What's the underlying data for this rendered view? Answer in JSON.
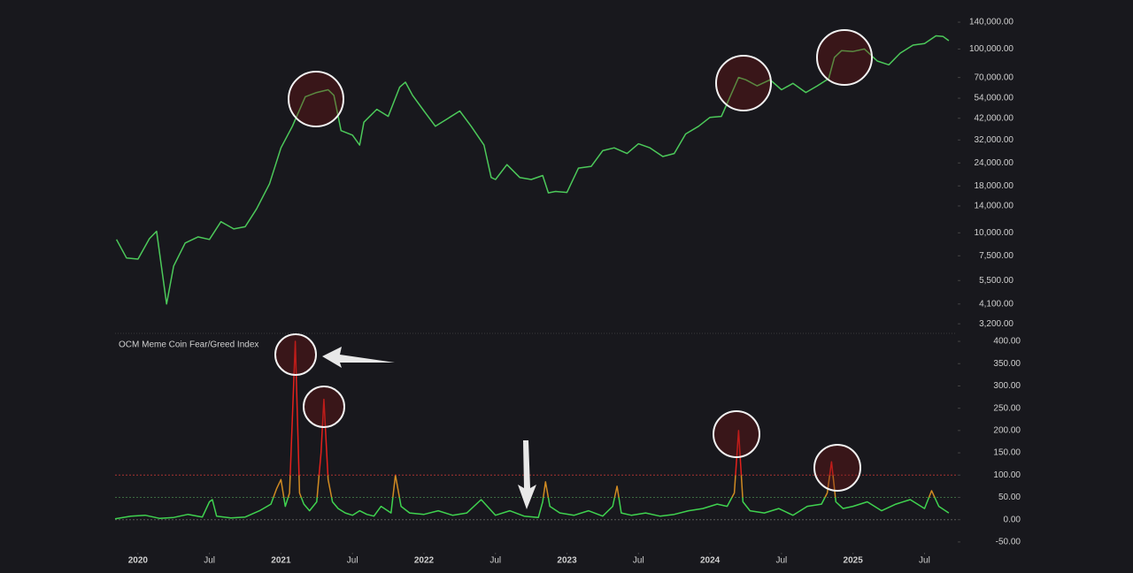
{
  "chart_data": [
    {
      "type": "line",
      "log_scale": true,
      "color": "#4cc95a",
      "x": [
        2019.85,
        2019.92,
        2020.0,
        2020.08,
        2020.13,
        2020.2,
        2020.25,
        2020.33,
        2020.42,
        2020.5,
        2020.58,
        2020.67,
        2020.75,
        2020.83,
        2020.92,
        2021.0,
        2021.08,
        2021.17,
        2021.25,
        2021.33,
        2021.37,
        2021.42,
        2021.5,
        2021.55,
        2021.58,
        2021.67,
        2021.75,
        2021.83,
        2021.87,
        2021.92,
        2022.0,
        2022.08,
        2022.17,
        2022.25,
        2022.33,
        2022.42,
        2022.47,
        2022.5,
        2022.58,
        2022.67,
        2022.75,
        2022.83,
        2022.87,
        2022.92,
        2023.0,
        2023.08,
        2023.17,
        2023.25,
        2023.33,
        2023.42,
        2023.5,
        2023.58,
        2023.67,
        2023.75,
        2023.83,
        2023.92,
        2024.0,
        2024.08,
        2024.17,
        2024.2,
        2024.25,
        2024.33,
        2024.42,
        2024.5,
        2024.58,
        2024.67,
        2024.75,
        2024.83,
        2024.87,
        2024.92,
        2025.0,
        2025.08,
        2025.17,
        2025.25,
        2025.33,
        2025.42,
        2025.5,
        2025.58,
        2025.63,
        2025.67
      ],
      "values": [
        9200,
        7300,
        7200,
        9300,
        10200,
        4100,
        6600,
        8800,
        9500,
        9200,
        11500,
        10500,
        10800,
        13500,
        18500,
        29000,
        38000,
        55000,
        58000,
        60000,
        56000,
        36000,
        34000,
        30000,
        40000,
        47000,
        43000,
        62000,
        66000,
        56000,
        46000,
        38000,
        42000,
        46000,
        38000,
        30000,
        20000,
        19500,
        23500,
        20000,
        19500,
        20500,
        16500,
        16800,
        16600,
        22500,
        23000,
        28000,
        29000,
        27000,
        30500,
        29000,
        26000,
        27000,
        34500,
        38000,
        42500,
        43000,
        62000,
        70000,
        68000,
        63000,
        68000,
        60000,
        65000,
        58000,
        63000,
        69000,
        90000,
        98000,
        97000,
        100000,
        86000,
        82000,
        95000,
        105000,
        107000,
        118000,
        117000,
        111000
      ],
      "xlim": [
        2019.84,
        2025.72
      ],
      "ylim": [
        3000,
        160000
      ],
      "yticks": [
        {
          "value": 140000,
          "label": "140,000.00"
        },
        {
          "value": 100000,
          "label": "100,000.00"
        },
        {
          "value": 70000,
          "label": "70,000.00"
        },
        {
          "value": 54000,
          "label": "54,000.00"
        },
        {
          "value": 42000,
          "label": "42,000.00"
        },
        {
          "value": 32000,
          "label": "32,000.00"
        },
        {
          "value": 24000,
          "label": "24,000.00"
        },
        {
          "value": 18000,
          "label": "18,000.00"
        },
        {
          "value": 14000,
          "label": "14,000.00"
        },
        {
          "value": 10000,
          "label": "10,000.00"
        },
        {
          "value": 7500,
          "label": "7,500.00"
        },
        {
          "value": 5500,
          "label": "5,500.00"
        },
        {
          "value": 4100,
          "label": "4,100.00"
        },
        {
          "value": 3200,
          "label": "3,200.00"
        }
      ]
    },
    {
      "type": "line",
      "title": "OCM Meme Coin Fear/Greed Index",
      "color": "#3fd24f",
      "threshold_colors": [
        {
          "above": 50,
          "color": "#d08a22"
        },
        {
          "above": 100,
          "color": "#e3211c"
        }
      ],
      "hlines": [
        {
          "value": 100,
          "color": "#a83232"
        },
        {
          "value": 50,
          "color": "#3c6a40"
        },
        {
          "value": 0,
          "color": "#5a5a5a"
        }
      ],
      "x": [
        2019.84,
        2019.95,
        2020.05,
        2020.15,
        2020.25,
        2020.35,
        2020.45,
        2020.5,
        2020.52,
        2020.55,
        2020.65,
        2020.75,
        2020.85,
        2020.93,
        2020.97,
        2021.0,
        2021.03,
        2021.06,
        2021.1,
        2021.13,
        2021.16,
        2021.2,
        2021.25,
        2021.28,
        2021.3,
        2021.33,
        2021.36,
        2021.4,
        2021.45,
        2021.5,
        2021.55,
        2021.6,
        2021.65,
        2021.7,
        2021.77,
        2021.8,
        2021.84,
        2021.9,
        2022.0,
        2022.1,
        2022.2,
        2022.3,
        2022.4,
        2022.5,
        2022.6,
        2022.7,
        2022.8,
        2022.83,
        2022.85,
        2022.88,
        2022.95,
        2023.05,
        2023.15,
        2023.25,
        2023.32,
        2023.35,
        2023.38,
        2023.45,
        2023.55,
        2023.65,
        2023.75,
        2023.85,
        2023.95,
        2024.05,
        2024.12,
        2024.17,
        2024.2,
        2024.23,
        2024.28,
        2024.38,
        2024.48,
        2024.58,
        2024.68,
        2024.78,
        2024.82,
        2024.85,
        2024.88,
        2024.93,
        2025.0,
        2025.1,
        2025.2,
        2025.3,
        2025.4,
        2025.5,
        2025.55,
        2025.6,
        2025.67
      ],
      "values": [
        2,
        8,
        10,
        3,
        5,
        12,
        6,
        40,
        45,
        8,
        4,
        6,
        20,
        35,
        70,
        90,
        30,
        60,
        400,
        60,
        35,
        20,
        40,
        150,
        270,
        90,
        40,
        25,
        15,
        10,
        20,
        12,
        8,
        30,
        15,
        100,
        30,
        15,
        12,
        20,
        10,
        15,
        45,
        10,
        20,
        8,
        5,
        40,
        85,
        30,
        15,
        10,
        20,
        8,
        30,
        75,
        15,
        10,
        15,
        8,
        12,
        20,
        25,
        35,
        30,
        60,
        200,
        40,
        20,
        15,
        25,
        10,
        30,
        35,
        60,
        130,
        40,
        25,
        30,
        40,
        20,
        35,
        45,
        25,
        65,
        30,
        15
      ],
      "xlim": [
        2019.84,
        2025.72
      ],
      "ylim": [
        -70,
        410
      ],
      "yticks": [
        {
          "value": 400,
          "label": "400.00"
        },
        {
          "value": 350,
          "label": "350.00"
        },
        {
          "value": 300,
          "label": "300.00"
        },
        {
          "value": 250,
          "label": "250.00"
        },
        {
          "value": 200,
          "label": "200.00"
        },
        {
          "value": 150,
          "label": "150.00"
        },
        {
          "value": 100,
          "label": "100.00"
        },
        {
          "value": 50,
          "label": "50.00"
        },
        {
          "value": 0,
          "label": "0.00"
        },
        {
          "value": -50,
          "label": "-50.00"
        }
      ],
      "xticks": [
        2020,
        {
          "value": 2020.5,
          "label": "Jul"
        },
        2021,
        {
          "value": 2021.5,
          "label": "Jul"
        },
        2022,
        {
          "value": 2022.5,
          "label": "Jul"
        },
        2023,
        {
          "value": 2023.5,
          "label": "Jul"
        },
        2024,
        {
          "value": 2024.5,
          "label": "Jul"
        },
        2025,
        {
          "value": 2025.5,
          "label": "Jul"
        }
      ]
    }
  ]
}
